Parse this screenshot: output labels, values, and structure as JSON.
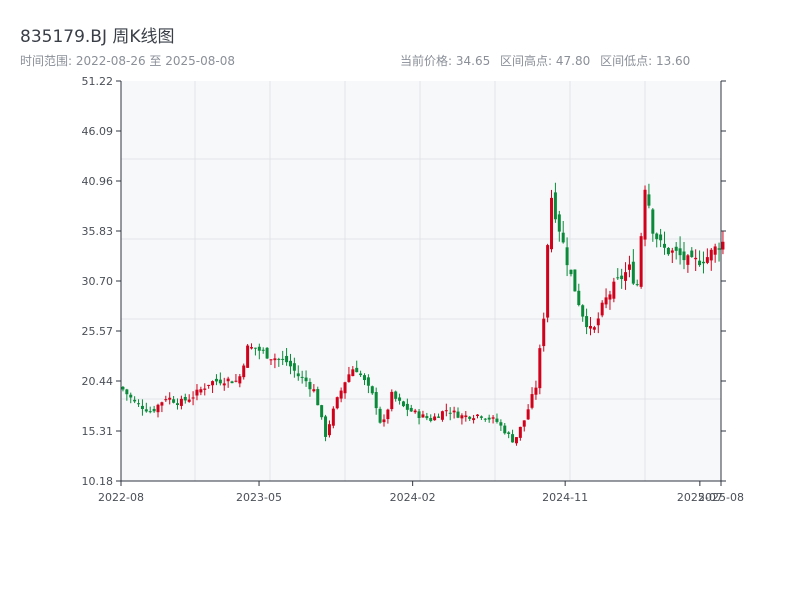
{
  "header": {
    "title": "835179.BJ 周K线图",
    "range_label": "时间范围: 2022-08-26 至 2025-08-08",
    "current_price": "当前价格: 34.65",
    "high": "区间高点: 47.80",
    "low": "区间低点: 13.60"
  },
  "colors": {
    "up": "#d0021b",
    "down": "#0a8a3a",
    "plot_bg": "#f7f8fa",
    "grid": "#e1e4e8",
    "axis": "#2f3640"
  },
  "chart_data": {
    "type": "candlestick",
    "ylim": [
      10.18,
      51.22
    ],
    "yticks": [
      "10.18",
      "15.31",
      "20.44",
      "25.57",
      "30.70",
      "35.83",
      "40.96",
      "46.09",
      "51.22"
    ],
    "x_start": "2022-08-26",
    "x_end": "2025-08-08",
    "xticks": [
      {
        "label": "2022-08",
        "date": "2022-08-26"
      },
      {
        "label": "2023-05",
        "date": "2023-05-01"
      },
      {
        "label": "2024-02",
        "date": "2024-02-01"
      },
      {
        "label": "2024-11",
        "date": "2024-11-01"
      },
      {
        "label": "2025-07",
        "date": "2025-07-01"
      },
      {
        "label": "2025-08",
        "date": "2025-08-08"
      }
    ],
    "anchors": [
      [
        "2022-08-26",
        19.8
      ],
      [
        "2022-09-20",
        18.2
      ],
      [
        "2022-10-20",
        17.3
      ],
      [
        "2022-11-15",
        18.8
      ],
      [
        "2022-12-10",
        18.2
      ],
      [
        "2023-01-05",
        19.0
      ],
      [
        "2023-02-01",
        20.3
      ],
      [
        "2023-03-01",
        20.6
      ],
      [
        "2023-03-25",
        20.4
      ],
      [
        "2023-04-10",
        23.8
      ],
      [
        "2023-04-25",
        23.8
      ],
      [
        "2023-05-20",
        23.0
      ],
      [
        "2023-06-20",
        22.4
      ],
      [
        "2023-07-10",
        21.0
      ],
      [
        "2023-07-25",
        20.4
      ],
      [
        "2023-08-10",
        19.3
      ],
      [
        "2023-08-28",
        14.8
      ],
      [
        "2023-09-15",
        18.0
      ],
      [
        "2023-10-05",
        20.8
      ],
      [
        "2023-10-20",
        22.0
      ],
      [
        "2023-11-05",
        20.5
      ],
      [
        "2023-11-25",
        18.5
      ],
      [
        "2023-12-08",
        15.5
      ],
      [
        "2023-12-25",
        19.0
      ],
      [
        "2024-01-15",
        17.8
      ],
      [
        "2024-02-10",
        17.0
      ],
      [
        "2024-03-05",
        16.5
      ],
      [
        "2024-04-01",
        17.5
      ],
      [
        "2024-05-01",
        16.8
      ],
      [
        "2024-06-01",
        17.0
      ],
      [
        "2024-07-01",
        16.3
      ],
      [
        "2024-08-01",
        14.2
      ],
      [
        "2024-08-20",
        16.5
      ],
      [
        "2024-09-10",
        20.0
      ],
      [
        "2024-09-25",
        28.0
      ],
      [
        "2024-10-05",
        40.0
      ],
      [
        "2024-10-20",
        36.5
      ],
      [
        "2024-11-10",
        31.5
      ],
      [
        "2024-12-01",
        27.5
      ],
      [
        "2024-12-20",
        25.2
      ],
      [
        "2025-01-10",
        28.5
      ],
      [
        "2025-02-01",
        30.5
      ],
      [
        "2025-02-25",
        32.0
      ],
      [
        "2025-03-10",
        30.0
      ],
      [
        "2025-03-25",
        41.0
      ],
      [
        "2025-04-08",
        36.0
      ],
      [
        "2025-04-25",
        34.0
      ],
      [
        "2025-05-20",
        33.5
      ],
      [
        "2025-06-15",
        32.5
      ],
      [
        "2025-07-15",
        33.2
      ],
      [
        "2025-08-08",
        34.65
      ]
    ]
  }
}
